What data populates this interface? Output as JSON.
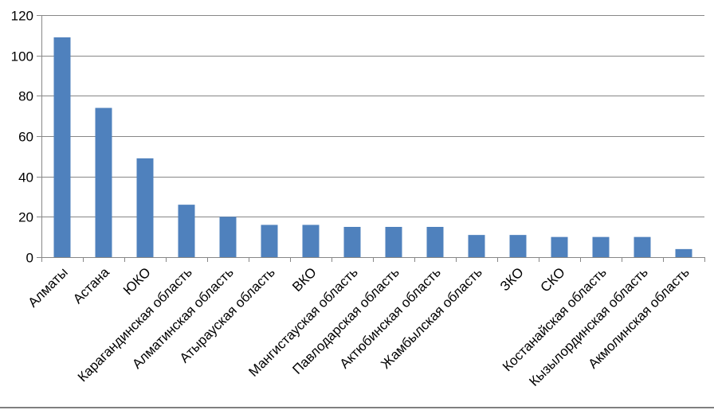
{
  "chart_data": {
    "type": "bar",
    "title": "",
    "xlabel": "",
    "ylabel": "",
    "ylim": [
      0,
      120
    ],
    "yticks": [
      0,
      20,
      40,
      60,
      80,
      100,
      120
    ],
    "grid": true,
    "legend": "none",
    "bar_color": "#4F81BD",
    "categories": [
      "Алматы",
      "Астана",
      "ЮКО",
      "Карагандинская область",
      "Алматинская область",
      "Атырауская область",
      "ВКО",
      "Мангистауская область",
      "Павлодарская область",
      "Актюбинская область",
      "Жамбылская область",
      "ЗКО",
      "СКО",
      "Костанайская область",
      "Кызылординская область",
      "Акмолинская область"
    ],
    "values": [
      109,
      74,
      49,
      26,
      20,
      16,
      16,
      15,
      15,
      15,
      11,
      11,
      10,
      10,
      10,
      4
    ]
  }
}
